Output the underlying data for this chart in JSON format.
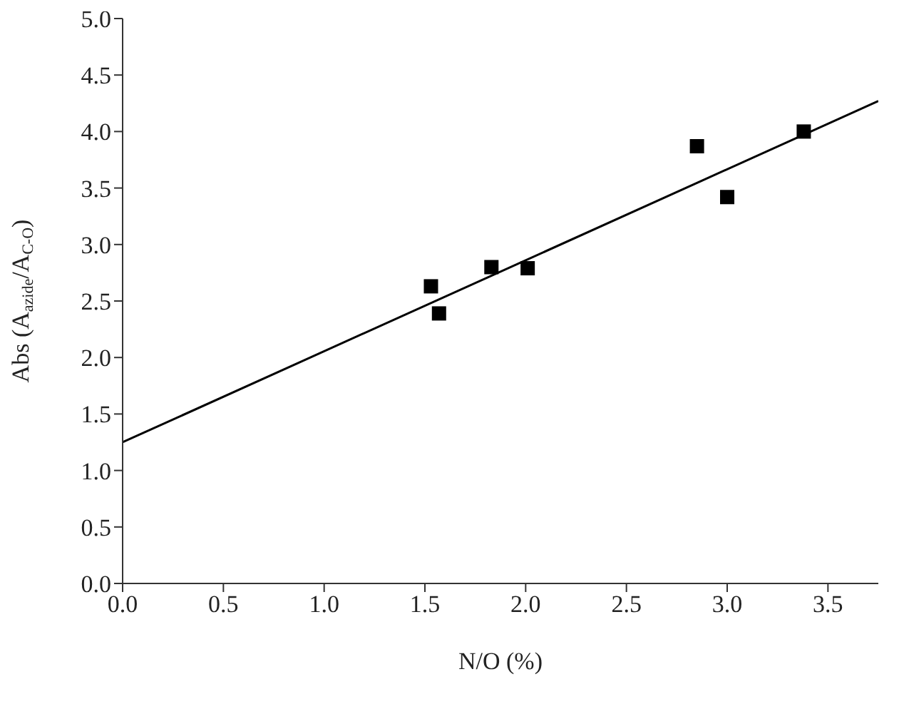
{
  "chart_data": {
    "type": "scatter",
    "xlabel": "N/O (%)",
    "ylabel": "Abs (A$_{azide}$/A$_{C-O}$)",
    "xlim": [
      0,
      3.75
    ],
    "xticks": [
      {
        "value": 0,
        "label": "0.0"
      },
      {
        "value": 0.5,
        "label": "0.5"
      },
      {
        "value": 1,
        "label": "1.0"
      },
      {
        "value": 1.5,
        "label": "1.5"
      },
      {
        "value": 2,
        "label": "2.0"
      },
      {
        "value": 2.5,
        "label": "2.5"
      },
      {
        "value": 3,
        "label": "3.0"
      },
      {
        "value": 3.5,
        "label": "3.5"
      }
    ],
    "ylim": [
      0,
      5
    ],
    "yticks": [
      {
        "value": 0,
        "label": "0.0"
      },
      {
        "value": 0.5,
        "label": "0.5"
      },
      {
        "value": 1,
        "label": "1.0"
      },
      {
        "value": 1.5,
        "label": "1.5"
      },
      {
        "value": 2,
        "label": "2.0"
      },
      {
        "value": 2.5,
        "label": "2.5"
      },
      {
        "value": 3,
        "label": "3.0"
      },
      {
        "value": 3.5,
        "label": "3.5"
      },
      {
        "value": 4,
        "label": "4.0"
      },
      {
        "value": 4.5,
        "label": "4.5"
      },
      {
        "value": 5,
        "label": "5.0"
      }
    ],
    "grid": false,
    "legend": false,
    "series": [
      {
        "color": "#000000",
        "marker": "square",
        "x": [
          1.53,
          1.57,
          1.83,
          2.01,
          2.85,
          3.0,
          3.38
        ],
        "values": [
          2.63,
          2.39,
          2.8,
          2.79,
          3.87,
          3.42,
          4.0
        ]
      },
      {
        "type": "line",
        "color": "#000000",
        "line_style": "solid",
        "marker": "none",
        "x": [
          0,
          3.75
        ],
        "values": [
          1.25,
          4.27
        ]
      }
    ]
  }
}
